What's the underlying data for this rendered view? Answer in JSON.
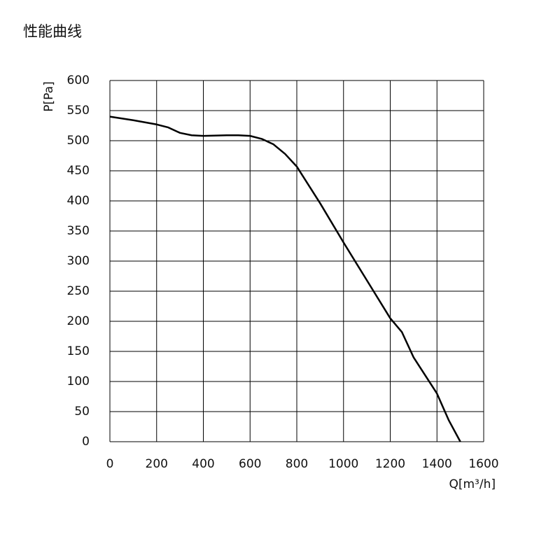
{
  "chart_data": {
    "type": "line",
    "title": "性能曲线",
    "y_label": "P[Pa]",
    "x_label": "Q[m³/h]",
    "series": [
      {
        "name": "P",
        "color": "#000000",
        "x": [
          0,
          100,
          200,
          250,
          300,
          350,
          400,
          500,
          550,
          600,
          650,
          700,
          750,
          800,
          900,
          1000,
          1100,
          1200,
          1250,
          1300,
          1400,
          1450,
          1500
        ],
        "values": [
          540,
          534,
          527,
          522,
          513,
          509,
          508,
          509,
          509,
          508,
          503,
          494,
          478,
          457,
          396,
          331,
          268,
          205,
          182,
          140,
          80,
          36,
          0
        ]
      }
    ],
    "xlim": [
      0,
      1600
    ],
    "xticks": [
      0,
      200,
      400,
      600,
      800,
      1000,
      1200,
      1400,
      1600
    ],
    "ylim": [
      0,
      600
    ],
    "yticks": [
      0,
      50,
      100,
      150,
      200,
      250,
      300,
      350,
      400,
      450,
      500,
      550,
      600
    ],
    "grid": true
  }
}
